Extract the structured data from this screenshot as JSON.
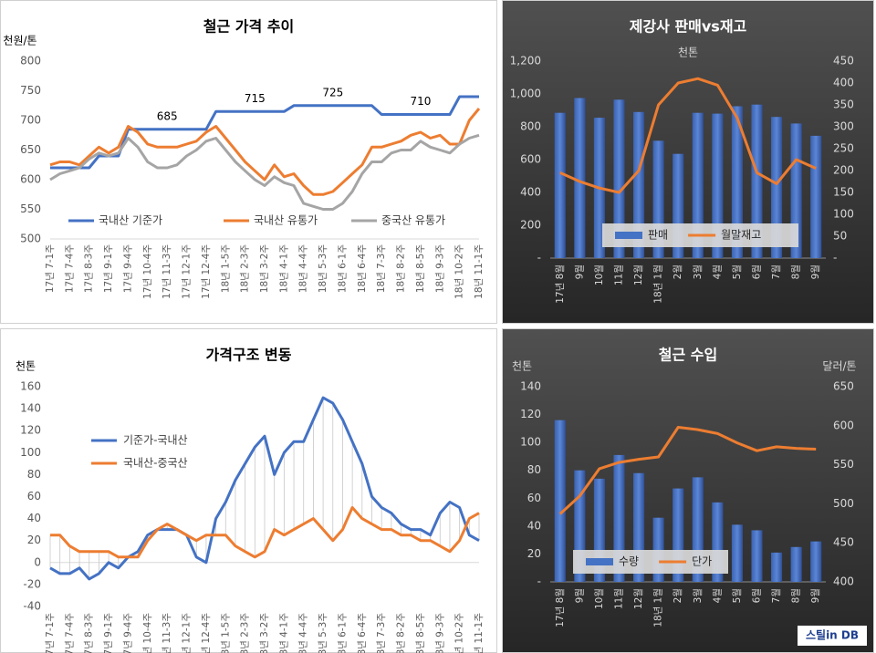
{
  "chart_data": [
    {
      "type": "line",
      "title": "철근 가격 추이",
      "y_label": "천원/톤",
      "categories": [
        "17년 7-1주",
        null,
        "17년 7-4주",
        null,
        "17년 8-3주",
        null,
        "17년 9-1주",
        null,
        "17년 9-4주",
        null,
        "17년 10-4주",
        null,
        "17년 11-3주",
        null,
        "17년 12-1주",
        null,
        "17년 12-4주",
        null,
        "18년 1-5주",
        null,
        "18년 2-3주",
        null,
        "18년 3-2주",
        null,
        "18년 4-1주",
        null,
        "18년 4-4주",
        null,
        "18년 5-3주",
        null,
        "18년 6-1주",
        null,
        "18년 6-4주",
        null,
        "18년 7-3주",
        null,
        "18년 8-2주",
        null,
        "18년 8-5주",
        null,
        "18년 9-3주",
        null,
        "18년 10-2주",
        null,
        "18년 11-1주"
      ],
      "series": [
        {
          "name": "국내산 기준가",
          "color": "#4472c4",
          "values": [
            620,
            620,
            620,
            620,
            620,
            640,
            640,
            640,
            685,
            685,
            685,
            685,
            685,
            685,
            685,
            685,
            685,
            715,
            715,
            715,
            715,
            715,
            715,
            715,
            715,
            725,
            725,
            725,
            725,
            725,
            725,
            725,
            725,
            725,
            710,
            710,
            710,
            710,
            710,
            710,
            710,
            710,
            740,
            740,
            740
          ],
          "value_labels": [
            null,
            null,
            null,
            null,
            null,
            null,
            null,
            null,
            null,
            null,
            null,
            null,
            "685",
            null,
            null,
            null,
            null,
            null,
            null,
            null,
            null,
            "715",
            null,
            null,
            null,
            null,
            null,
            null,
            null,
            "725",
            null,
            null,
            null,
            null,
            null,
            null,
            null,
            null,
            "710",
            null,
            null,
            null,
            null,
            null,
            null
          ]
        },
        {
          "name": "국내산 유통가",
          "color": "#ed7d31",
          "values": [
            625,
            630,
            630,
            625,
            640,
            655,
            645,
            655,
            690,
            680,
            660,
            655,
            655,
            655,
            660,
            665,
            680,
            690,
            670,
            650,
            630,
            615,
            600,
            625,
            605,
            610,
            590,
            575,
            575,
            580,
            595,
            610,
            625,
            655,
            655,
            660,
            665,
            675,
            680,
            670,
            675,
            660,
            660,
            700,
            720
          ]
        },
        {
          "name": "중국산 유통가",
          "color": "#a5a5a5",
          "values": [
            600,
            610,
            615,
            620,
            635,
            645,
            640,
            645,
            670,
            655,
            630,
            620,
            620,
            625,
            640,
            650,
            665,
            670,
            650,
            630,
            615,
            600,
            590,
            605,
            595,
            590,
            560,
            555,
            550,
            550,
            560,
            580,
            610,
            630,
            630,
            645,
            650,
            650,
            665,
            655,
            650,
            645,
            660,
            670,
            675
          ]
        }
      ],
      "ylim": [
        500,
        800
      ],
      "yticks": [
        500,
        550,
        600,
        650,
        700,
        750,
        800
      ],
      "legend": "bottom"
    },
    {
      "type": "bar",
      "title": "제강사 판매vs재고",
      "y_label": "천톤",
      "categories": [
        "17년 8월",
        "9월",
        "10월",
        "11월",
        "12월",
        "18년 1월",
        "2월",
        "3월",
        "4월",
        "5월",
        "6월",
        "7월",
        "8월",
        "9월"
      ],
      "series": [
        {
          "name": "판매",
          "color": "#4472c4",
          "values": [
            885,
            975,
            855,
            965,
            890,
            715,
            635,
            885,
            880,
            925,
            935,
            860,
            820,
            745
          ]
        },
        {
          "name": "월말재고",
          "color": "#ed7d31",
          "type": "line",
          "axis": "y2",
          "values": [
            195,
            175,
            160,
            150,
            200,
            350,
            400,
            410,
            395,
            320,
            195,
            170,
            225,
            205
          ]
        }
      ],
      "ylim": [
        0,
        1200
      ],
      "yticks": [
        {
          "value": 0,
          "label": "-"
        },
        200,
        400,
        600,
        800,
        {
          "value": 1000,
          "label": "1,000"
        },
        {
          "value": 1200,
          "label": "1,200"
        }
      ],
      "y2lim": [
        0,
        450
      ],
      "y2ticks": [
        {
          "value": 0,
          "label": "-"
        },
        50,
        100,
        150,
        200,
        250,
        300,
        350,
        400,
        450
      ],
      "legend": "bottom"
    },
    {
      "type": "line",
      "title": "가격구조 변동",
      "y_label": "천톤",
      "categories": [
        "17년 7-1주",
        null,
        "17년 7-4주",
        null,
        "17년 8-3주",
        null,
        "17년 9-1주",
        null,
        "17년 9-4주",
        null,
        "17년 10-4주",
        null,
        "17년 11-3주",
        null,
        "17년 12-1주",
        null,
        "17년 12-4주",
        null,
        "18년 1-5주",
        null,
        "18년 2-3주",
        null,
        "18년 3-2주",
        null,
        "18년 4-1주",
        null,
        "18년 4-4주",
        null,
        "18년 5-3주",
        null,
        "18년 6-1주",
        null,
        "18년 6-4주",
        null,
        "18년 7-3주",
        null,
        "18년 8-2주",
        null,
        "18년 8-5주",
        null,
        "18년 9-3주",
        null,
        "18년 10-2주",
        null,
        "18년 11-1주"
      ],
      "series": [
        {
          "name": "기준가-국내산",
          "color": "#4472c4",
          "values": [
            -5,
            -10,
            -10,
            -5,
            -15,
            -10,
            0,
            -5,
            5,
            10,
            25,
            30,
            30,
            30,
            25,
            5,
            0,
            40,
            55,
            75,
            90,
            105,
            115,
            80,
            100,
            110,
            110,
            130,
            150,
            145,
            130,
            110,
            90,
            60,
            50,
            45,
            35,
            30,
            30,
            25,
            45,
            55,
            50,
            25,
            20
          ]
        },
        {
          "name": "국내산-중국산",
          "color": "#ed7d31",
          "values": [
            25,
            25,
            15,
            10,
            10,
            10,
            10,
            5,
            5,
            5,
            20,
            30,
            35,
            30,
            25,
            20,
            25,
            25,
            25,
            15,
            10,
            5,
            10,
            30,
            25,
            30,
            35,
            40,
            30,
            20,
            30,
            50,
            40,
            35,
            30,
            30,
            25,
            25,
            20,
            20,
            15,
            10,
            20,
            40,
            45
          ]
        }
      ],
      "ylim": [
        -40,
        160
      ],
      "yticks": [
        -40,
        -20,
        0,
        20,
        40,
        60,
        80,
        100,
        120,
        140,
        160
      ],
      "legend": "left"
    },
    {
      "type": "bar",
      "title": "철근 수입",
      "y_label": "천톤",
      "y2_label": "달러/톤",
      "categories": [
        "17년 8월",
        "9월",
        "10월",
        "11월",
        "12월",
        "18년 1월",
        "2월",
        "3월",
        "4월",
        "5월",
        "6월",
        "7월",
        "8월",
        "9월"
      ],
      "series": [
        {
          "name": "수량",
          "color": "#4472c4",
          "values": [
            116,
            80,
            74,
            91,
            78,
            46,
            67,
            75,
            57,
            41,
            37,
            21,
            25,
            29
          ]
        },
        {
          "name": "단가",
          "color": "#ed7d31",
          "type": "line",
          "axis": "y2",
          "values": [
            487,
            510,
            545,
            553,
            557,
            560,
            598,
            595,
            590,
            578,
            568,
            573,
            571,
            570
          ]
        }
      ],
      "ylim": [
        0,
        140
      ],
      "yticks": [
        {
          "value": 0,
          "label": "-"
        },
        20,
        40,
        60,
        80,
        100,
        120,
        140
      ],
      "y2lim": [
        400,
        650
      ],
      "y2ticks": [
        400,
        450,
        500,
        550,
        600,
        650
      ],
      "legend": "bottom",
      "watermark": "스틸in DB"
    }
  ]
}
